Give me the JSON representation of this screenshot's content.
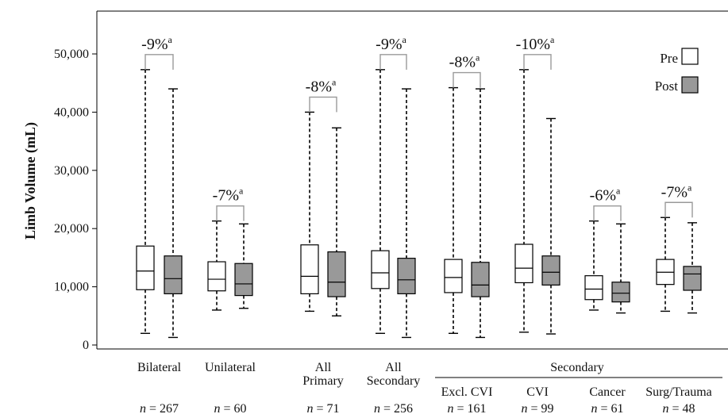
{
  "chart_data": {
    "type": "box",
    "ylabel": "Limb Volume (mL)",
    "ylim": [
      0,
      55000
    ],
    "yticks": [
      0,
      10000,
      20000,
      30000,
      40000,
      50000
    ],
    "ytick_labels": [
      "0",
      "10,000",
      "20,000",
      "30,000",
      "40,000",
      "50,000"
    ],
    "legend": {
      "position": "top-right",
      "entries": [
        {
          "name": "Pre",
          "color": "#ffffff"
        },
        {
          "name": "Post",
          "color": "#999999"
        }
      ]
    },
    "group_header": "Secondary",
    "series": [
      {
        "name": "Pre"
      },
      {
        "name": "Post"
      }
    ],
    "groups": [
      {
        "label_lines": [
          "Bilateral"
        ],
        "n_label": "n = 267",
        "change": "-9%",
        "change_mark": "a",
        "pre": {
          "min": 2000,
          "q1": 9500,
          "median": 12700,
          "q3": 17000,
          "max": 47300
        },
        "post": {
          "min": 1300,
          "q1": 8800,
          "median": 11400,
          "q3": 15300,
          "max": 44000
        }
      },
      {
        "label_lines": [
          "Unilateral"
        ],
        "n_label": "n = 60",
        "change": "-7%",
        "change_mark": "a",
        "pre": {
          "min": 6000,
          "q1": 9300,
          "median": 11300,
          "q3": 14300,
          "max": 21300
        },
        "post": {
          "min": 6300,
          "q1": 8500,
          "median": 10500,
          "q3": 14000,
          "max": 20800
        }
      },
      {
        "label_lines": [
          "All",
          "Primary"
        ],
        "n_label": "n = 71",
        "change": "-8%",
        "change_mark": "a",
        "pre": {
          "min": 5800,
          "q1": 8800,
          "median": 11800,
          "q3": 17200,
          "max": 40000
        },
        "post": {
          "min": 5000,
          "q1": 8300,
          "median": 10800,
          "q3": 16000,
          "max": 37300
        }
      },
      {
        "label_lines": [
          "All",
          "Secondary"
        ],
        "n_label": "n = 256",
        "change": "-9%",
        "change_mark": "a",
        "pre": {
          "min": 2000,
          "q1": 9700,
          "median": 12400,
          "q3": 16200,
          "max": 47300
        },
        "post": {
          "min": 1300,
          "q1": 8800,
          "median": 11200,
          "q3": 14900,
          "max": 44000
        }
      },
      {
        "label_lines": [
          "Excl. CVI"
        ],
        "n_label": "n = 161",
        "change": "-8%",
        "change_mark": "a",
        "pre": {
          "min": 2000,
          "q1": 9000,
          "median": 11600,
          "q3": 14700,
          "max": 44200
        },
        "post": {
          "min": 1300,
          "q1": 8300,
          "median": 10300,
          "q3": 14200,
          "max": 44000
        }
      },
      {
        "label_lines": [
          "CVI"
        ],
        "n_label": "n = 99",
        "change": "-10%",
        "change_mark": "a",
        "pre": {
          "min": 2200,
          "q1": 10700,
          "median": 13200,
          "q3": 17300,
          "max": 47300
        },
        "post": {
          "min": 1900,
          "q1": 10300,
          "median": 12500,
          "q3": 15300,
          "max": 38900
        }
      },
      {
        "label_lines": [
          "Cancer"
        ],
        "n_label": "n = 61",
        "change": "-6%",
        "change_mark": "a",
        "pre": {
          "min": 6000,
          "q1": 7800,
          "median": 9600,
          "q3": 11900,
          "max": 21300
        },
        "post": {
          "min": 5500,
          "q1": 7400,
          "median": 8900,
          "q3": 10800,
          "max": 20800
        }
      },
      {
        "label_lines": [
          "Surg/Trauma"
        ],
        "n_label": "n = 48",
        "change": "-7%",
        "change_mark": "a",
        "pre": {
          "min": 5800,
          "q1": 10400,
          "median": 12500,
          "q3": 14700,
          "max": 21900
        },
        "post": {
          "min": 5500,
          "q1": 9400,
          "median": 12200,
          "q3": 13500,
          "max": 21000
        }
      }
    ]
  }
}
